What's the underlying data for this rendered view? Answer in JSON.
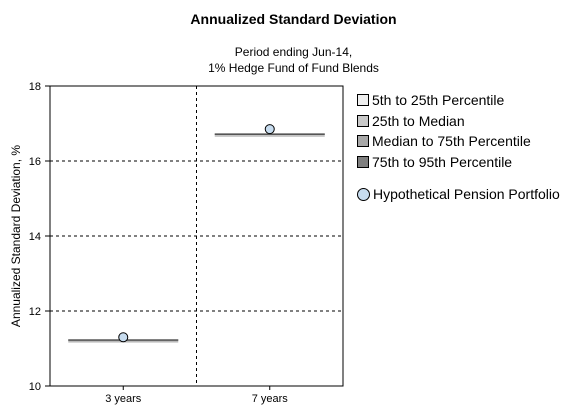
{
  "title": "Annualized Standard Deviation",
  "subtitle_line1": "Period ending Jun-14,",
  "subtitle_line2": "1% Hedge Fund of Fund Blends",
  "colors": {
    "p5_25": "#efefef",
    "p25_50": "#c9c9c9",
    "p50_75": "#a8a8a8",
    "p75_95": "#7f7f7f",
    "portfolio": "#c7dcef",
    "range_line": "#555555"
  },
  "legend": {
    "p5_25": "5th to 25th Percentile",
    "p25_50": "25th to Median",
    "p50_75": "Median to 75th Percentile",
    "p75_95": "75th to 95th Percentile",
    "portfolio": "Hypothetical Pension Portfolio"
  },
  "chart_data": {
    "type": "box",
    "title": "Annualized Standard Deviation",
    "ylabel": "Annualized Standard Deviation, %",
    "xlabel": "",
    "categories": [
      "3 years",
      "7 years"
    ],
    "ylim": [
      10,
      18
    ],
    "yticks": [
      10,
      12,
      14,
      16,
      18
    ],
    "grid": true,
    "legend_position": "right",
    "percentiles": [
      {
        "category": "3 years",
        "p5": 11.19,
        "p25": 11.21,
        "p50": 11.22,
        "p75": 11.23,
        "p95": 11.25
      },
      {
        "category": "7 years",
        "p5": 16.68,
        "p25": 16.7,
        "p50": 16.71,
        "p75": 16.72,
        "p95": 16.74
      }
    ],
    "series": [
      {
        "name": "Hypothetical Pension Portfolio",
        "values": [
          11.3,
          16.85
        ]
      }
    ]
  }
}
